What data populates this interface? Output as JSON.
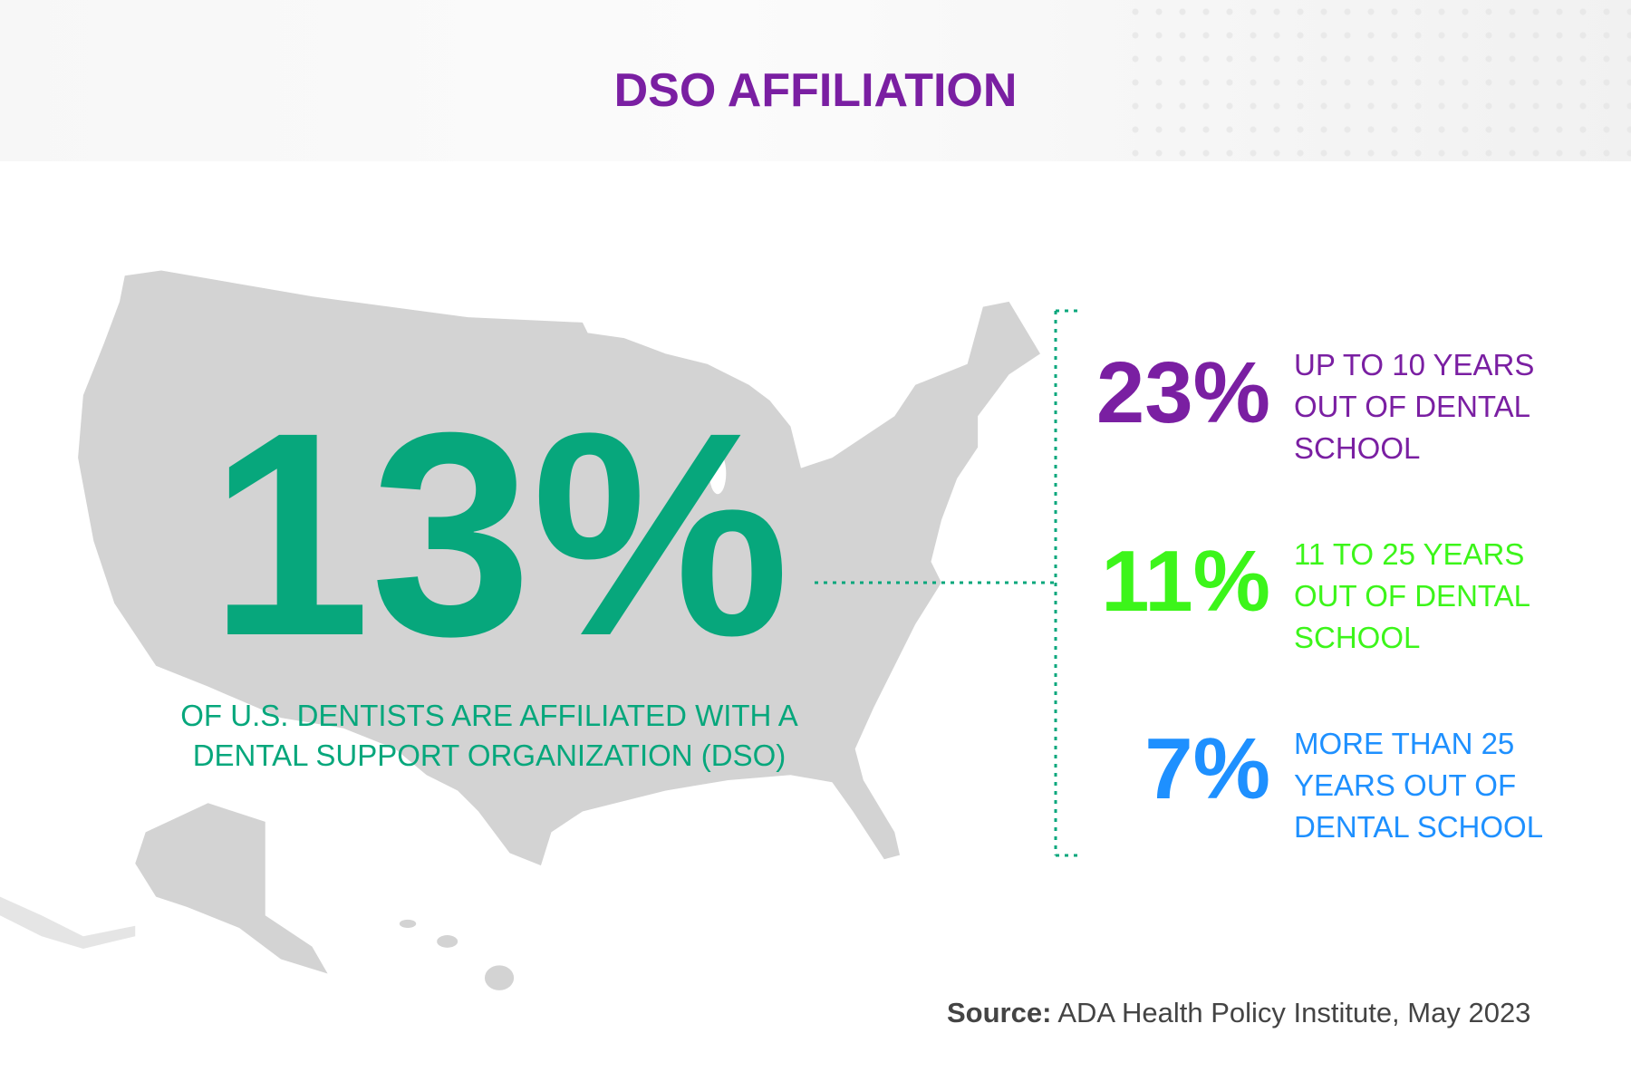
{
  "title": "DSO AFFILIATION",
  "headline": {
    "value": "13%",
    "caption_line1": "OF U.S. DENTISTS ARE AFFILIATED WITH A",
    "caption_line2": "DENTAL SUPPORT ORGANIZATION (DSO)"
  },
  "breakdown": [
    {
      "value": "23%",
      "lines": [
        "UP TO 10 YEARS",
        "OUT OF DENTAL",
        "SCHOOL"
      ],
      "color": "#7a1fa2"
    },
    {
      "value": "11%",
      "lines": [
        "11 TO 25 YEARS",
        "OUT OF DENTAL",
        "SCHOOL"
      ],
      "color": "#3cf51a"
    },
    {
      "value": "7%",
      "lines": [
        "MORE THAN 25",
        "YEARS OUT OF",
        "DENTAL SCHOOL"
      ],
      "color": "#1e90ff"
    }
  ],
  "source": {
    "label": "Source:",
    "text": " ADA Health Policy Institute, May 2023"
  },
  "colors": {
    "accent": "#07a77c",
    "map": "#d3d3d3"
  }
}
